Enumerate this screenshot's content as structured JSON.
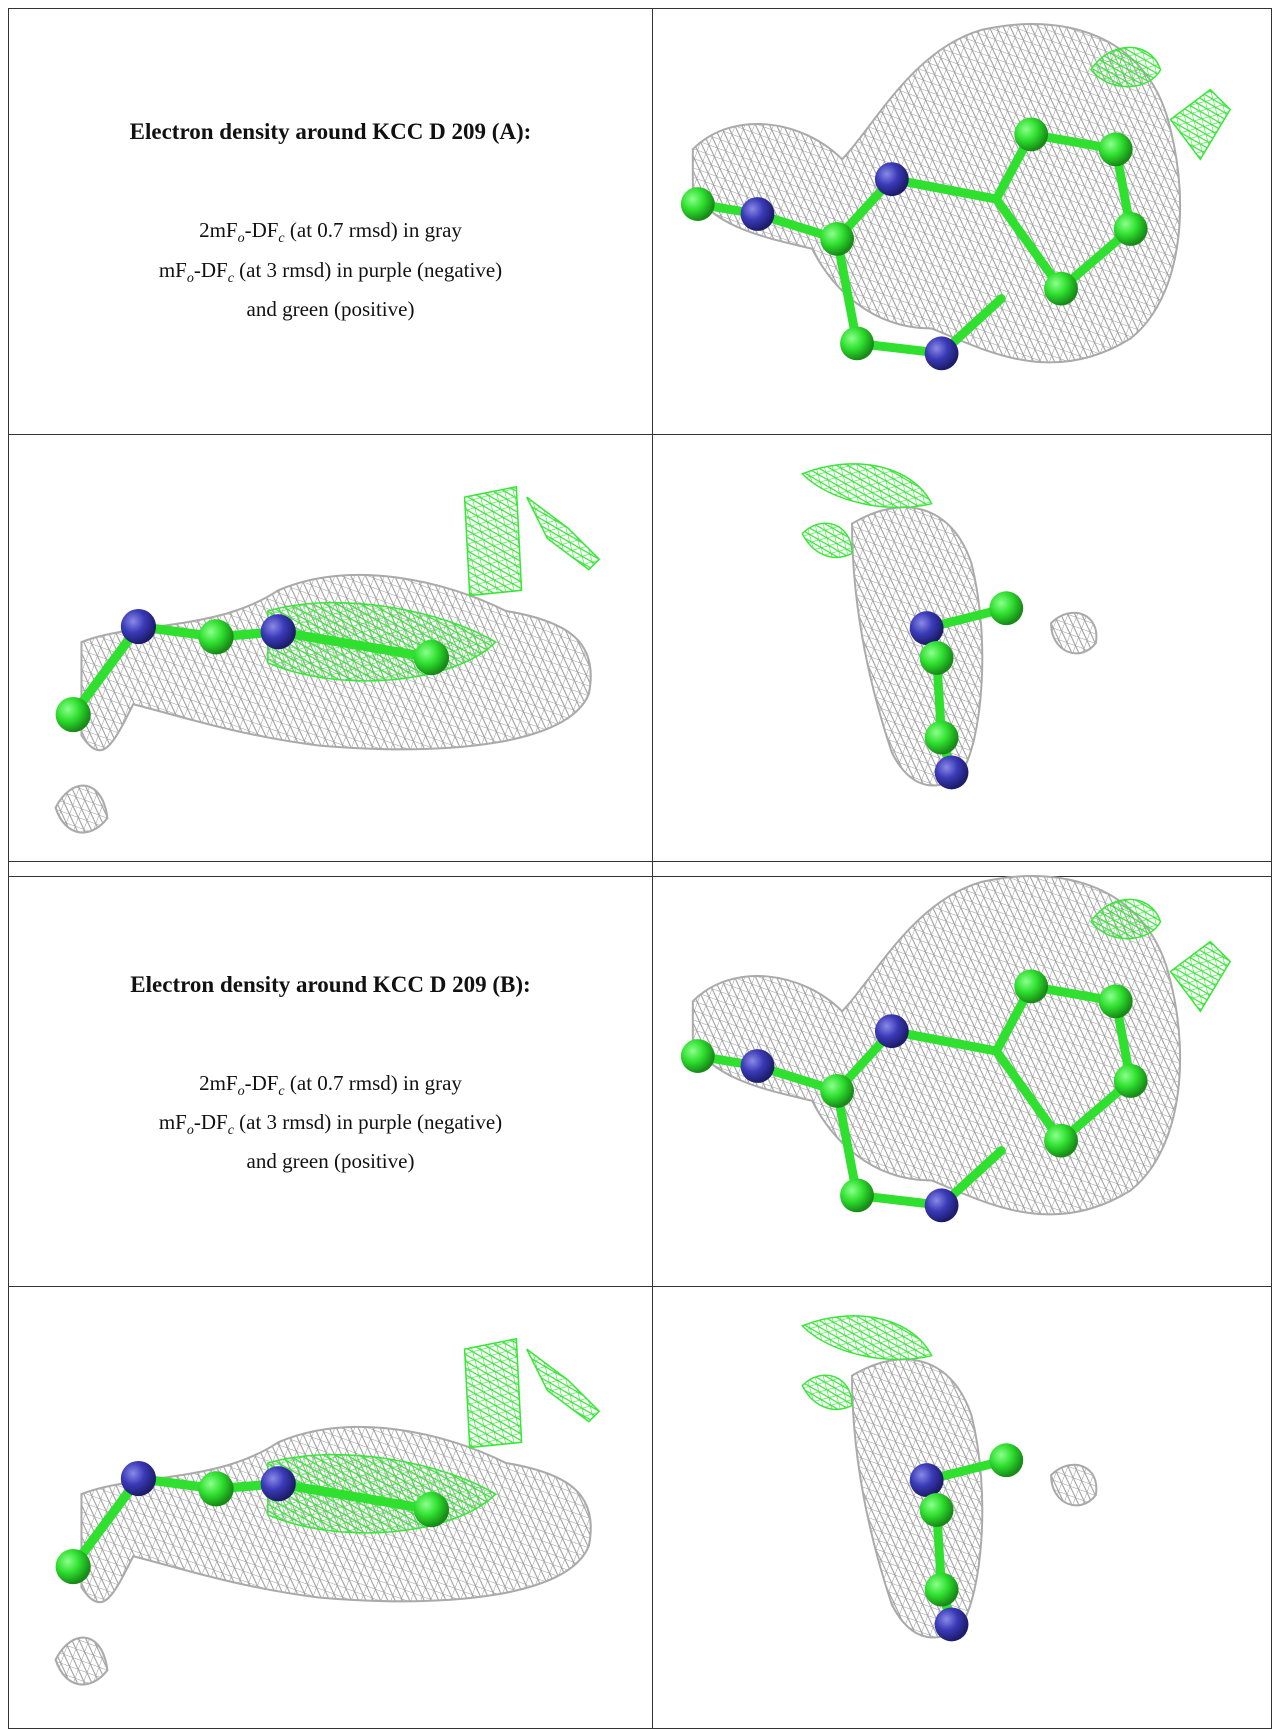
{
  "tables": [
    {
      "title": "Electron density around KCC D 209 (A):",
      "legend": [
        [
          "2mF",
          "o",
          "-DF",
          "c",
          " (at 0.7 rmsd) in gray"
        ],
        [
          "mF",
          "o",
          "-DF",
          "c",
          " (at 3 rmsd) in purple (negative)"
        ],
        [
          "and green (positive)"
        ]
      ]
    },
    {
      "title": "Electron density around KCC D 209 (B):",
      "legend": [
        [
          "2mF",
          "o",
          "-DF",
          "c",
          " (at 0.7 rmsd) in gray"
        ],
        [
          "mF",
          "o",
          "-DF",
          "c",
          " (at 3 rmsd) in purple (negative)"
        ],
        [
          "and green (positive)"
        ]
      ]
    }
  ]
}
